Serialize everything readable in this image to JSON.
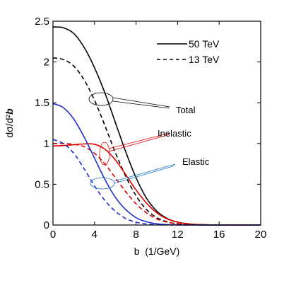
{
  "chart_data": {
    "type": "line",
    "xlabel": "b  (1/GeV)",
    "ylabel_main": "dσ/d²",
    "ylabel_bold": "b",
    "xlim": [
      0,
      20
    ],
    "ylim": [
      0,
      2.5
    ],
    "x_ticks": [
      0,
      4,
      8,
      12,
      16,
      20
    ],
    "x_tick_labels": [
      "0",
      "4",
      "8",
      "12",
      "16",
      "20"
    ],
    "y_ticks": [
      0,
      0.5,
      1,
      1.5,
      2,
      2.5
    ],
    "y_tick_labels": [
      "0",
      "0.5",
      "1",
      "1.5",
      "2",
      "2.5"
    ],
    "legend": {
      "position": "top-right",
      "entries": [
        {
          "label": "50 TeV",
          "style": "solid"
        },
        {
          "label": "13 TeV",
          "style": "dashed"
        }
      ]
    },
    "annotations": [
      {
        "text": "Total",
        "color": "#000000"
      },
      {
        "text": "Inelastic",
        "color": "#e00000"
      },
      {
        "text": "Elastic",
        "color": "#1a73c8"
      }
    ],
    "series": [
      {
        "name": "Total",
        "energy": "50 TeV",
        "color": "#000000",
        "style": "solid",
        "x": [
          0,
          1,
          2,
          3,
          4,
          5,
          6,
          7,
          8,
          9,
          10,
          11,
          12,
          13,
          14,
          15,
          16,
          20
        ],
        "y": [
          2.43,
          2.42,
          2.35,
          2.18,
          1.93,
          1.62,
          1.26,
          0.9,
          0.58,
          0.33,
          0.17,
          0.08,
          0.035,
          0.015,
          0.006,
          0.002,
          0.0,
          0.0
        ]
      },
      {
        "name": "Total",
        "energy": "13 TeV",
        "color": "#000000",
        "style": "dashed",
        "x": [
          0,
          1,
          2,
          3,
          4,
          5,
          6,
          7,
          8,
          9,
          10,
          11,
          12,
          13,
          14,
          16,
          20
        ],
        "y": [
          2.05,
          2.03,
          1.95,
          1.78,
          1.53,
          1.22,
          0.89,
          0.6,
          0.36,
          0.19,
          0.09,
          0.04,
          0.015,
          0.005,
          0.002,
          0.0,
          0.0
        ]
      },
      {
        "name": "Inelastic",
        "energy": "50 TeV",
        "color": "#e00000",
        "style": "solid",
        "x": [
          0,
          1,
          2,
          3,
          4,
          5,
          6,
          7,
          8,
          9,
          10,
          11,
          12,
          13,
          14,
          16,
          20
        ],
        "y": [
          0.97,
          0.975,
          0.985,
          0.995,
          0.99,
          0.93,
          0.8,
          0.62,
          0.43,
          0.27,
          0.15,
          0.075,
          0.035,
          0.015,
          0.006,
          0.0,
          0.0
        ]
      },
      {
        "name": "Inelastic",
        "energy": "13 TeV",
        "color": "#e00000",
        "style": "dashed",
        "x": [
          0,
          1,
          2,
          3,
          4,
          5,
          6,
          7,
          8,
          9,
          10,
          11,
          12,
          13,
          14,
          16,
          20
        ],
        "y": [
          1.0,
          1.0,
          0.99,
          0.96,
          0.88,
          0.75,
          0.58,
          0.41,
          0.26,
          0.15,
          0.075,
          0.035,
          0.014,
          0.005,
          0.002,
          0.0,
          0.0
        ]
      },
      {
        "name": "Elastic",
        "energy": "50 TeV",
        "color": "#1f2fd0",
        "style": "solid",
        "x": [
          0,
          1,
          2,
          3,
          4,
          5,
          6,
          7,
          8,
          9,
          10,
          11,
          12,
          14,
          16,
          20
        ],
        "y": [
          1.49,
          1.44,
          1.3,
          1.08,
          0.82,
          0.56,
          0.34,
          0.19,
          0.09,
          0.04,
          0.015,
          0.005,
          0.002,
          0.0,
          0.0,
          0.0
        ]
      },
      {
        "name": "Elastic",
        "energy": "13 TeV",
        "color": "#1f2fd0",
        "style": "dashed",
        "x": [
          0,
          1,
          2,
          3,
          4,
          5,
          6,
          7,
          8,
          9,
          10,
          11,
          12,
          14,
          16,
          20
        ],
        "y": [
          1.05,
          1.0,
          0.88,
          0.69,
          0.48,
          0.3,
          0.17,
          0.08,
          0.035,
          0.013,
          0.004,
          0.001,
          0.0,
          0.0,
          0.0,
          0.0
        ]
      }
    ]
  }
}
